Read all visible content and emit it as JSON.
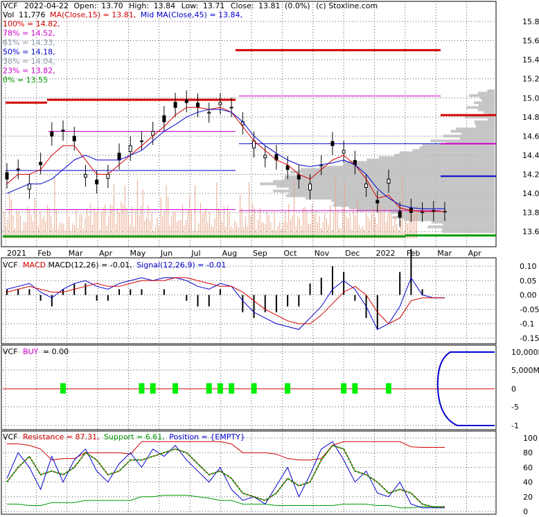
{
  "chart_data": {
    "type": "line",
    "header": {
      "symbol": "VCF",
      "date": "2022-04-22",
      "open_label": "Open:",
      "open": "13.70",
      "high_label": "High:",
      "high": "13.84",
      "low_label": "Low:",
      "low": "13.71",
      "close_label": "Close:",
      "close": "13.81",
      "change": "(0.0%)",
      "source": "(c) Stoxline.com",
      "vol_label": "Vol",
      "vol": "11,776",
      "ma15_label": "MA(Close,15) = 13.81,",
      "ma45_label": "Mid MA(Close,45) = 13.84,"
    },
    "fib_levels": [
      {
        "label": "100% = 14.82,",
        "color": "#d40000"
      },
      {
        "label": "78% = 14.52,",
        "color": "#cc00cc"
      },
      {
        "label": "61% = 14.33,",
        "color": "#8899aa"
      },
      {
        "label": "50% = 14.18,",
        "color": "#0000cc"
      },
      {
        "label": "38% = 14.04,",
        "color": "#8899aa"
      },
      {
        "label": "23% = 13.82,",
        "color": "#cc00cc"
      },
      {
        "label": "0% = 13.55",
        "color": "#009900"
      }
    ],
    "price_axis": {
      "ticks": [
        "15.8",
        "15.6",
        "15.4",
        "15.2",
        "15.0",
        "14.8",
        "14.6",
        "14.4",
        "14.2",
        "14.0",
        "13.8",
        "13.6"
      ],
      "values": [
        15.8,
        15.6,
        15.4,
        15.2,
        15.0,
        14.8,
        14.6,
        14.4,
        14.2,
        14.0,
        13.8,
        13.6
      ],
      "ylim": [
        13.5,
        15.88
      ]
    },
    "x_labels": [
      "2021",
      "Feb",
      "Mar",
      "Apr",
      "May",
      "Jun",
      "Jul",
      "Aug",
      "Sep",
      "Oct",
      "Nov",
      "Dec",
      "2022",
      "Feb",
      "Mar",
      "Apr"
    ],
    "price_series": {
      "close": [
        14.15,
        14.25,
        14.1,
        14.3,
        14.6,
        14.65,
        14.55,
        14.2,
        14.1,
        14.2,
        14.35,
        14.5,
        14.55,
        14.65,
        14.75,
        14.9,
        14.95,
        14.9,
        14.85,
        14.95,
        14.9,
        14.75,
        14.55,
        14.4,
        14.35,
        14.25,
        14.15,
        14.1,
        14.3,
        14.5,
        14.45,
        14.3,
        14.1,
        13.9,
        14.15,
        13.75,
        13.8,
        13.8,
        13.81,
        13.81
      ],
      "ma15": [
        14.1,
        14.2,
        14.2,
        14.25,
        14.4,
        14.5,
        14.5,
        14.35,
        14.2,
        14.2,
        14.3,
        14.4,
        14.5,
        14.6,
        14.7,
        14.82,
        14.9,
        14.9,
        14.88,
        14.9,
        14.85,
        14.7,
        14.55,
        14.45,
        14.35,
        14.3,
        14.2,
        14.15,
        14.25,
        14.35,
        14.4,
        14.3,
        14.15,
        13.95,
        13.98,
        13.85,
        13.82,
        13.81,
        13.81,
        13.81
      ],
      "ma45": [
        14.0,
        14.05,
        14.1,
        14.1,
        14.15,
        14.25,
        14.35,
        14.4,
        14.35,
        14.35,
        14.35,
        14.4,
        14.45,
        14.55,
        14.65,
        14.72,
        14.8,
        14.85,
        14.88,
        14.88,
        14.85,
        14.75,
        14.6,
        14.5,
        14.42,
        14.35,
        14.3,
        14.28,
        14.3,
        14.32,
        14.35,
        14.3,
        14.2,
        14.05,
        13.95,
        13.88,
        13.85,
        13.84,
        13.84,
        13.84
      ]
    },
    "macd": {
      "label_symbol": "VCF",
      "label_name": "MACD",
      "label_params": "MACD(12,26) = -0.01,",
      "signal_label": "Signal(12,26,9) = -0.01",
      "ticks": [
        "0.10",
        "0.05",
        "0.00",
        "-0.05",
        "-0.1",
        "-0.15"
      ],
      "values": [
        0.1,
        0.05,
        0.0,
        -0.05,
        -0.1,
        -0.15
      ],
      "ylim": [
        -0.16,
        0.11
      ],
      "macd_series": [
        0.02,
        0.03,
        0.04,
        0.01,
        -0.01,
        0.02,
        0.04,
        0.05,
        0.03,
        0.02,
        0.04,
        0.05,
        0.06,
        0.05,
        0.06,
        0.06,
        0.05,
        0.03,
        0.02,
        0.04,
        0.03,
        -0.02,
        -0.06,
        -0.08,
        -0.1,
        -0.11,
        -0.12,
        -0.08,
        -0.04,
        0.02,
        0.05,
        0.02,
        -0.04,
        -0.12,
        -0.1,
        -0.04,
        0.06,
        0.0,
        -0.01,
        -0.01
      ],
      "signal_series": [
        0.01,
        0.02,
        0.03,
        0.02,
        0.01,
        0.01,
        0.02,
        0.03,
        0.04,
        0.03,
        0.03,
        0.04,
        0.05,
        0.05,
        0.05,
        0.06,
        0.06,
        0.05,
        0.04,
        0.03,
        0.03,
        0.01,
        -0.02,
        -0.05,
        -0.07,
        -0.09,
        -0.1,
        -0.1,
        -0.07,
        -0.03,
        0.01,
        0.03,
        0.0,
        -0.06,
        -0.1,
        -0.08,
        -0.02,
        -0.01,
        -0.01,
        -0.01
      ]
    },
    "buy": {
      "label_symbol": "VCF",
      "label_name": "BUY",
      "label_value": "= 0.00",
      "ticks": [
        "10,000M",
        "5,000M",
        "0",
        "-5",
        "-1"
      ],
      "signals": [
        5,
        12,
        13,
        15,
        18,
        19,
        20,
        22,
        25,
        30,
        31,
        34
      ]
    },
    "resistance": {
      "label_symbol": "VCF",
      "res_label": "Resistance = 87.31,",
      "sup_label": "Support = 6.61,",
      "pos_label": "Position = {EMPTY}",
      "ticks": [
        "100",
        "80",
        "60",
        "40",
        "20",
        "0"
      ],
      "values": [
        100,
        80,
        60,
        40,
        20,
        0
      ],
      "res_series": [
        92,
        92,
        90,
        85,
        70,
        72,
        72,
        80,
        80,
        80,
        80,
        78,
        95,
        95,
        95,
        95,
        95,
        95,
        95,
        95,
        92,
        80,
        80,
        80,
        78,
        72,
        70,
        70,
        72,
        90,
        95,
        95,
        95,
        95,
        95,
        95,
        88,
        87.31,
        87.31,
        87.31
      ],
      "sup_series": [
        10,
        10,
        8,
        8,
        12,
        12,
        12,
        15,
        15,
        15,
        15,
        15,
        20,
        20,
        22,
        22,
        22,
        20,
        18,
        15,
        15,
        10,
        10,
        10,
        8,
        8,
        8,
        8,
        8,
        8,
        10,
        10,
        10,
        8,
        8,
        5,
        5,
        6.61,
        6.61,
        6.61
      ],
      "k_series": [
        45,
        80,
        60,
        30,
        75,
        40,
        70,
        85,
        55,
        40,
        65,
        80,
        60,
        85,
        75,
        90,
        70,
        55,
        40,
        60,
        30,
        15,
        20,
        10,
        35,
        60,
        20,
        50,
        85,
        95,
        70,
        40,
        55,
        25,
        20,
        40,
        10,
        5,
        5,
        5
      ],
      "d_series": [
        40,
        60,
        75,
        50,
        55,
        50,
        60,
        80,
        70,
        50,
        55,
        70,
        70,
        75,
        80,
        85,
        80,
        65,
        50,
        55,
        45,
        25,
        20,
        15,
        25,
        45,
        35,
        40,
        70,
        90,
        85,
        55,
        50,
        40,
        25,
        30,
        25,
        10,
        6,
        6
      ]
    }
  }
}
